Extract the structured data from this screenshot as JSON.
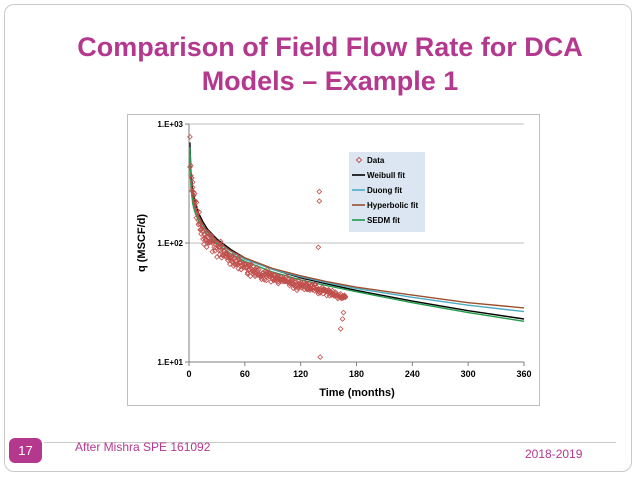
{
  "slide": {
    "title_line1": "Comparison of Field Flow Rate for DCA",
    "title_line2": "Models – Example 1",
    "page_number": "17",
    "source": "After Mishra SPE 161092",
    "date": "2018-2019"
  },
  "colors": {
    "accent": "#b5388f",
    "data_marker": "#c0504d",
    "weibull": "#000000",
    "duong": "#4bacc6",
    "hyperbolic": "#9c4f2e",
    "sedm": "#1e9c4a",
    "legend_bg": "#dce6f2"
  },
  "chart_data": {
    "type": "scatter",
    "xlabel": "Time (months)",
    "ylabel": "q (MSCF/d)",
    "xlim": [
      0,
      360
    ],
    "ylim": [
      10,
      1000
    ],
    "yscale": "log",
    "x_ticks": [
      "0",
      "60",
      "120",
      "180",
      "240",
      "300",
      "360"
    ],
    "x_tick_values": [
      0,
      60,
      120,
      180,
      240,
      300,
      360
    ],
    "y_ticks": [
      "1.E+01",
      "1.E+02",
      "1.E+03"
    ],
    "y_tick_values": [
      10,
      100,
      1000
    ],
    "grid": "horizontal",
    "legend_position": "top-right",
    "series": [
      {
        "name": "Data",
        "kind": "scatter",
        "marker": "diamond-open",
        "x": [
          1,
          1,
          2,
          2,
          3,
          3,
          4,
          4,
          5,
          5,
          6,
          6,
          7,
          7,
          8,
          8,
          9,
          9,
          10,
          10,
          11,
          11,
          12,
          12,
          13,
          13,
          14,
          14,
          15,
          15,
          16,
          16,
          17,
          17,
          18,
          18,
          19,
          19,
          20,
          20,
          21,
          21,
          22,
          22,
          23,
          23,
          24,
          24,
          25,
          25,
          26,
          26,
          27,
          27,
          28,
          28,
          29,
          29,
          30,
          30,
          31,
          31,
          32,
          32,
          33,
          33,
          34,
          34,
          35,
          35,
          36,
          36,
          37,
          37,
          38,
          38,
          39,
          39,
          40,
          40,
          41,
          41,
          42,
          42,
          43,
          43,
          44,
          44,
          45,
          45,
          46,
          46,
          47,
          47,
          48,
          48,
          49,
          49,
          50,
          50,
          51,
          51,
          52,
          52,
          53,
          53,
          54,
          54,
          55,
          55,
          56,
          56,
          57,
          57,
          58,
          58,
          59,
          59,
          60,
          60,
          61,
          61,
          62,
          62,
          63,
          63,
          64,
          64,
          65,
          65,
          66,
          66,
          67,
          67,
          68,
          68,
          69,
          69,
          70,
          70,
          71,
          71,
          72,
          72,
          73,
          73,
          74,
          74,
          75,
          75,
          76,
          76,
          77,
          77,
          78,
          78,
          79,
          79,
          80,
          80,
          81,
          81,
          82,
          82,
          83,
          83,
          84,
          84,
          85,
          85,
          86,
          86,
          87,
          87,
          88,
          88,
          89,
          89,
          90,
          90,
          91,
          91,
          92,
          92,
          93,
          93,
          94,
          94,
          95,
          95,
          96,
          96,
          97,
          97,
          98,
          98,
          99,
          99,
          100,
          100,
          101,
          101,
          102,
          102,
          103,
          103,
          104,
          104,
          105,
          105,
          106,
          106,
          107,
          107,
          108,
          108,
          109,
          109,
          110,
          110,
          111,
          111,
          112,
          112,
          113,
          113,
          114,
          114,
          115,
          115,
          116,
          116,
          117,
          117,
          118,
          118,
          119,
          119,
          120,
          120,
          121,
          121,
          122,
          122,
          123,
          123,
          124,
          124,
          125,
          125,
          126,
          126,
          127,
          127,
          128,
          128,
          129,
          129,
          130,
          130,
          131,
          131,
          132,
          132,
          133,
          133,
          134,
          134,
          135,
          135,
          136,
          136,
          137,
          137,
          138,
          138,
          139,
          139,
          140,
          140,
          141,
          141,
          142,
          142,
          143,
          143,
          144,
          144,
          145,
          145,
          146,
          146,
          147,
          147,
          148,
          148,
          149,
          149,
          150,
          150,
          151,
          151,
          152,
          152,
          153,
          153,
          154,
          154,
          155,
          155,
          156,
          156,
          157,
          157,
          158,
          158,
          159,
          159,
          160,
          160,
          161,
          161,
          162,
          162,
          163,
          163,
          164,
          164,
          165,
          165,
          166,
          166,
          167,
          167,
          168,
          168,
          140,
          140,
          141,
          139,
          165,
          163,
          166
        ],
        "y": [
          780,
          435,
          448,
          368,
          352,
          275,
          324,
          293,
          268,
          251,
          260,
          224,
          225,
          200,
          219,
          163,
          187,
          175,
          154,
          143,
          182,
          146,
          144,
          129,
          130,
          119,
          140,
          131,
          108,
          126,
          97.9,
          119,
          117,
          109,
          106,
          107,
          92.4,
          113,
          102,
          123,
          112,
          99.9,
          103,
          101,
          116,
          103,
          102,
          115,
          84.7,
          100,
          105,
          109,
          102,
          91.8,
          85.6,
          104,
          91,
          90.9,
          76.2,
          100,
          94.8,
          94.6,
          86.8,
          92.4,
          79.9,
          92.7,
          103,
          86.5,
          98.3,
          75.2,
          78.9,
          79,
          86.2,
          91.3,
          86.5,
          80.5,
          77.9,
          81.4,
          80.9,
          75.6,
          82.7,
          80.2,
          71.4,
          75.6,
          79.4,
          76.7,
          66.5,
          75.2,
          75.3,
          71.2,
          69.8,
          75.9,
          78.2,
          69.3,
          64.1,
          72.7,
          65.9,
          74.7,
          66.6,
          70.4,
          77.9,
          66.2,
          67.2,
          65.3,
          75,
          60.9,
          68.3,
          72.3,
          68.5,
          69.4,
          59.9,
          59.9,
          64.6,
          65.1,
          62.4,
          66.9,
          62.4,
          66,
          66.8,
          66.6,
          62.1,
          66.5,
          61.7,
          63.4,
          54.9,
          56.2,
          59.1,
          65.4,
          60.2,
          64.6,
          52.6,
          65.6,
          66.1,
          60.8,
          58.1,
          59.9,
          57.3,
          55.1,
          58.5,
          56.4,
          60.7,
          52.6,
          55.7,
          53.6,
          62.3,
          59.6,
          58.2,
          53.8,
          54.2,
          59.7,
          53.9,
          53.8,
          52.7,
          51.8,
          54.1,
          49.6,
          56,
          55.8,
          56.5,
          53.1,
          54.3,
          49.1,
          54.6,
          57.7,
          48.6,
          52.6,
          56.6,
          59.8,
          53.3,
          54.9,
          52.3,
          55.3,
          55.5,
          52.2,
          53.6,
          47.1,
          52.9,
          54.7,
          49.4,
          50,
          48.4,
          53.7,
          49.2,
          53.9,
          49.5,
          54.2,
          51.1,
          48.2,
          51.2,
          53,
          47.4,
          45.6,
          50.3,
          51.9,
          48.8,
          48,
          51.9,
          49.5,
          47.7,
          49.5,
          50.3,
          49.3,
          47.6,
          49.5,
          47.8,
          49.3,
          47.5,
          51.5,
          47.7,
          52.3,
          49.6,
          47,
          47.1,
          50,
          45.7,
          44,
          47.6,
          47.3,
          48.3,
          45.2,
          49.1,
          48.4,
          45.9,
          41.8,
          44.4,
          47.3,
          42.8,
          46.6,
          47.3,
          43.8,
          44.4,
          40.1,
          41.9,
          44.2,
          48.8,
          45.5,
          42.7,
          43.7,
          44.5,
          45.5,
          43.5,
          42.1,
          45.3,
          44.8,
          46.4,
          42.9,
          47.5,
          40.7,
          42.4,
          43.8,
          44.7,
          45.7,
          44.5,
          40.7,
          41.1,
          40.9,
          45.3,
          41.2,
          40.2,
          41.7,
          43.7,
          41.3,
          44.9,
          43.7,
          42.4,
          40.4,
          43.1,
          42.4,
          39.7,
          45.1,
          44.9,
          41.1,
          40.4,
          42.9,
          39.8,
          40.9,
          37.5,
          38.9,
          40.6,
          40.5,
          38.1,
          40.3,
          41.5,
          40.3,
          42.4,
          39.7,
          37.5,
          39.8,
          40,
          41.2,
          39.8,
          40.2,
          39.6,
          40.3,
          39.4,
          36.2,
          39.7,
          38.7,
          40.5,
          40.2,
          39.4,
          36,
          38.8,
          38.1,
          36.5,
          38.4,
          39.8,
          38,
          36.5,
          37.1,
          35.9,
          37.4,
          38.7,
          36.6,
          38,
          36.2,
          35,
          36.8,
          36.5,
          34.2,
          35.7,
          35.5,
          35.2,
          36.6,
          35.1,
          37.4,
          35.2,
          34.2,
          35.4,
          34.6,
          34.7,
          35.7,
          35.6,
          36.4,
          34.9,
          35.4,
          270,
          225,
          11,
          92,
          23,
          19,
          26
        ]
      },
      {
        "name": "Weibull fit",
        "kind": "line",
        "x": [
          1,
          2,
          4,
          6,
          10,
          15,
          20,
          30,
          45,
          60,
          90,
          120,
          150,
          180,
          240,
          300,
          360
        ],
        "y": [
          700,
          400,
          280,
          230,
          180,
          150,
          130,
          108,
          88,
          75,
          60,
          51,
          45,
          40,
          32.5,
          27,
          23
        ]
      },
      {
        "name": "Duong fit",
        "kind": "line",
        "x": [
          1,
          2,
          4,
          6,
          10,
          15,
          20,
          30,
          45,
          60,
          90,
          120,
          150,
          180,
          240,
          300,
          360
        ],
        "y": [
          560,
          340,
          250,
          205,
          165,
          140,
          122,
          102,
          85,
          73,
          60,
          52,
          46,
          41.5,
          35,
          30,
          26.5
        ]
      },
      {
        "name": "Hyperbolic fit",
        "kind": "line",
        "x": [
          1,
          2,
          4,
          6,
          10,
          15,
          20,
          30,
          45,
          60,
          90,
          120,
          150,
          180,
          240,
          300,
          360
        ],
        "y": [
          520,
          330,
          250,
          210,
          170,
          143,
          125,
          104,
          86,
          75,
          61,
          53,
          47,
          42.5,
          36.5,
          31.5,
          28.5
        ]
      },
      {
        "name": "SEDM fit",
        "kind": "line",
        "x": [
          1,
          2,
          4,
          6,
          10,
          15,
          20,
          30,
          45,
          60,
          90,
          120,
          150,
          180,
          240,
          300,
          360
        ],
        "y": [
          640,
          300,
          215,
          185,
          155,
          132,
          117,
          98,
          81,
          70,
          57,
          49,
          43.5,
          39,
          31.5,
          26,
          22
        ]
      }
    ]
  }
}
